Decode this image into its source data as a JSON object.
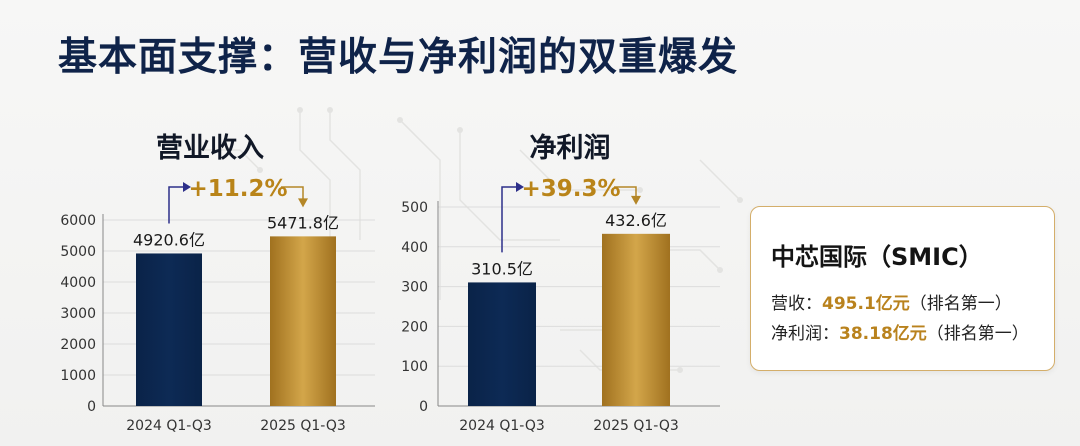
{
  "page": {
    "title": "基本面支撑：营收与净利润的双重爆发"
  },
  "colors": {
    "navy": "#0d2a55",
    "gold_dark": "#a0711f",
    "gold_light": "#d3a64a",
    "growth_text": "#b98419",
    "arrow_left": "#2d2f8a",
    "arrow_right": "#b48627"
  },
  "chart_data": [
    {
      "type": "bar",
      "title": "营业收入",
      "categories": [
        "2024 Q1-Q3",
        "2025 Q1-Q3"
      ],
      "values": [
        4920.6,
        5471.8
      ],
      "data_labels": [
        "4920.6亿",
        "5471.8亿"
      ],
      "growth_label": "+11.2%",
      "ylim": [
        0,
        6000
      ],
      "yticks": [
        "0",
        "1000",
        "2000",
        "3000",
        "4000",
        "5000",
        "6000"
      ],
      "grid": true
    },
    {
      "type": "bar",
      "title": "净利润",
      "categories": [
        "2024 Q1-Q3",
        "2025 Q1-Q3"
      ],
      "values": [
        310.5,
        432.6
      ],
      "data_labels": [
        "310.5亿",
        "432.6亿"
      ],
      "growth_label": "+39.3%",
      "ylim": [
        0,
        500
      ],
      "yticks": [
        "0",
        "100",
        "200",
        "300",
        "400",
        "500"
      ],
      "grid": true
    }
  ],
  "card": {
    "title": "中芯国际（SMIC）",
    "revenue_label": "营收：",
    "revenue_value": "495.1亿元",
    "revenue_rank": "（排名第一）",
    "profit_label": "净利润：",
    "profit_value": "38.18亿元",
    "profit_rank": "（排名第一）"
  }
}
